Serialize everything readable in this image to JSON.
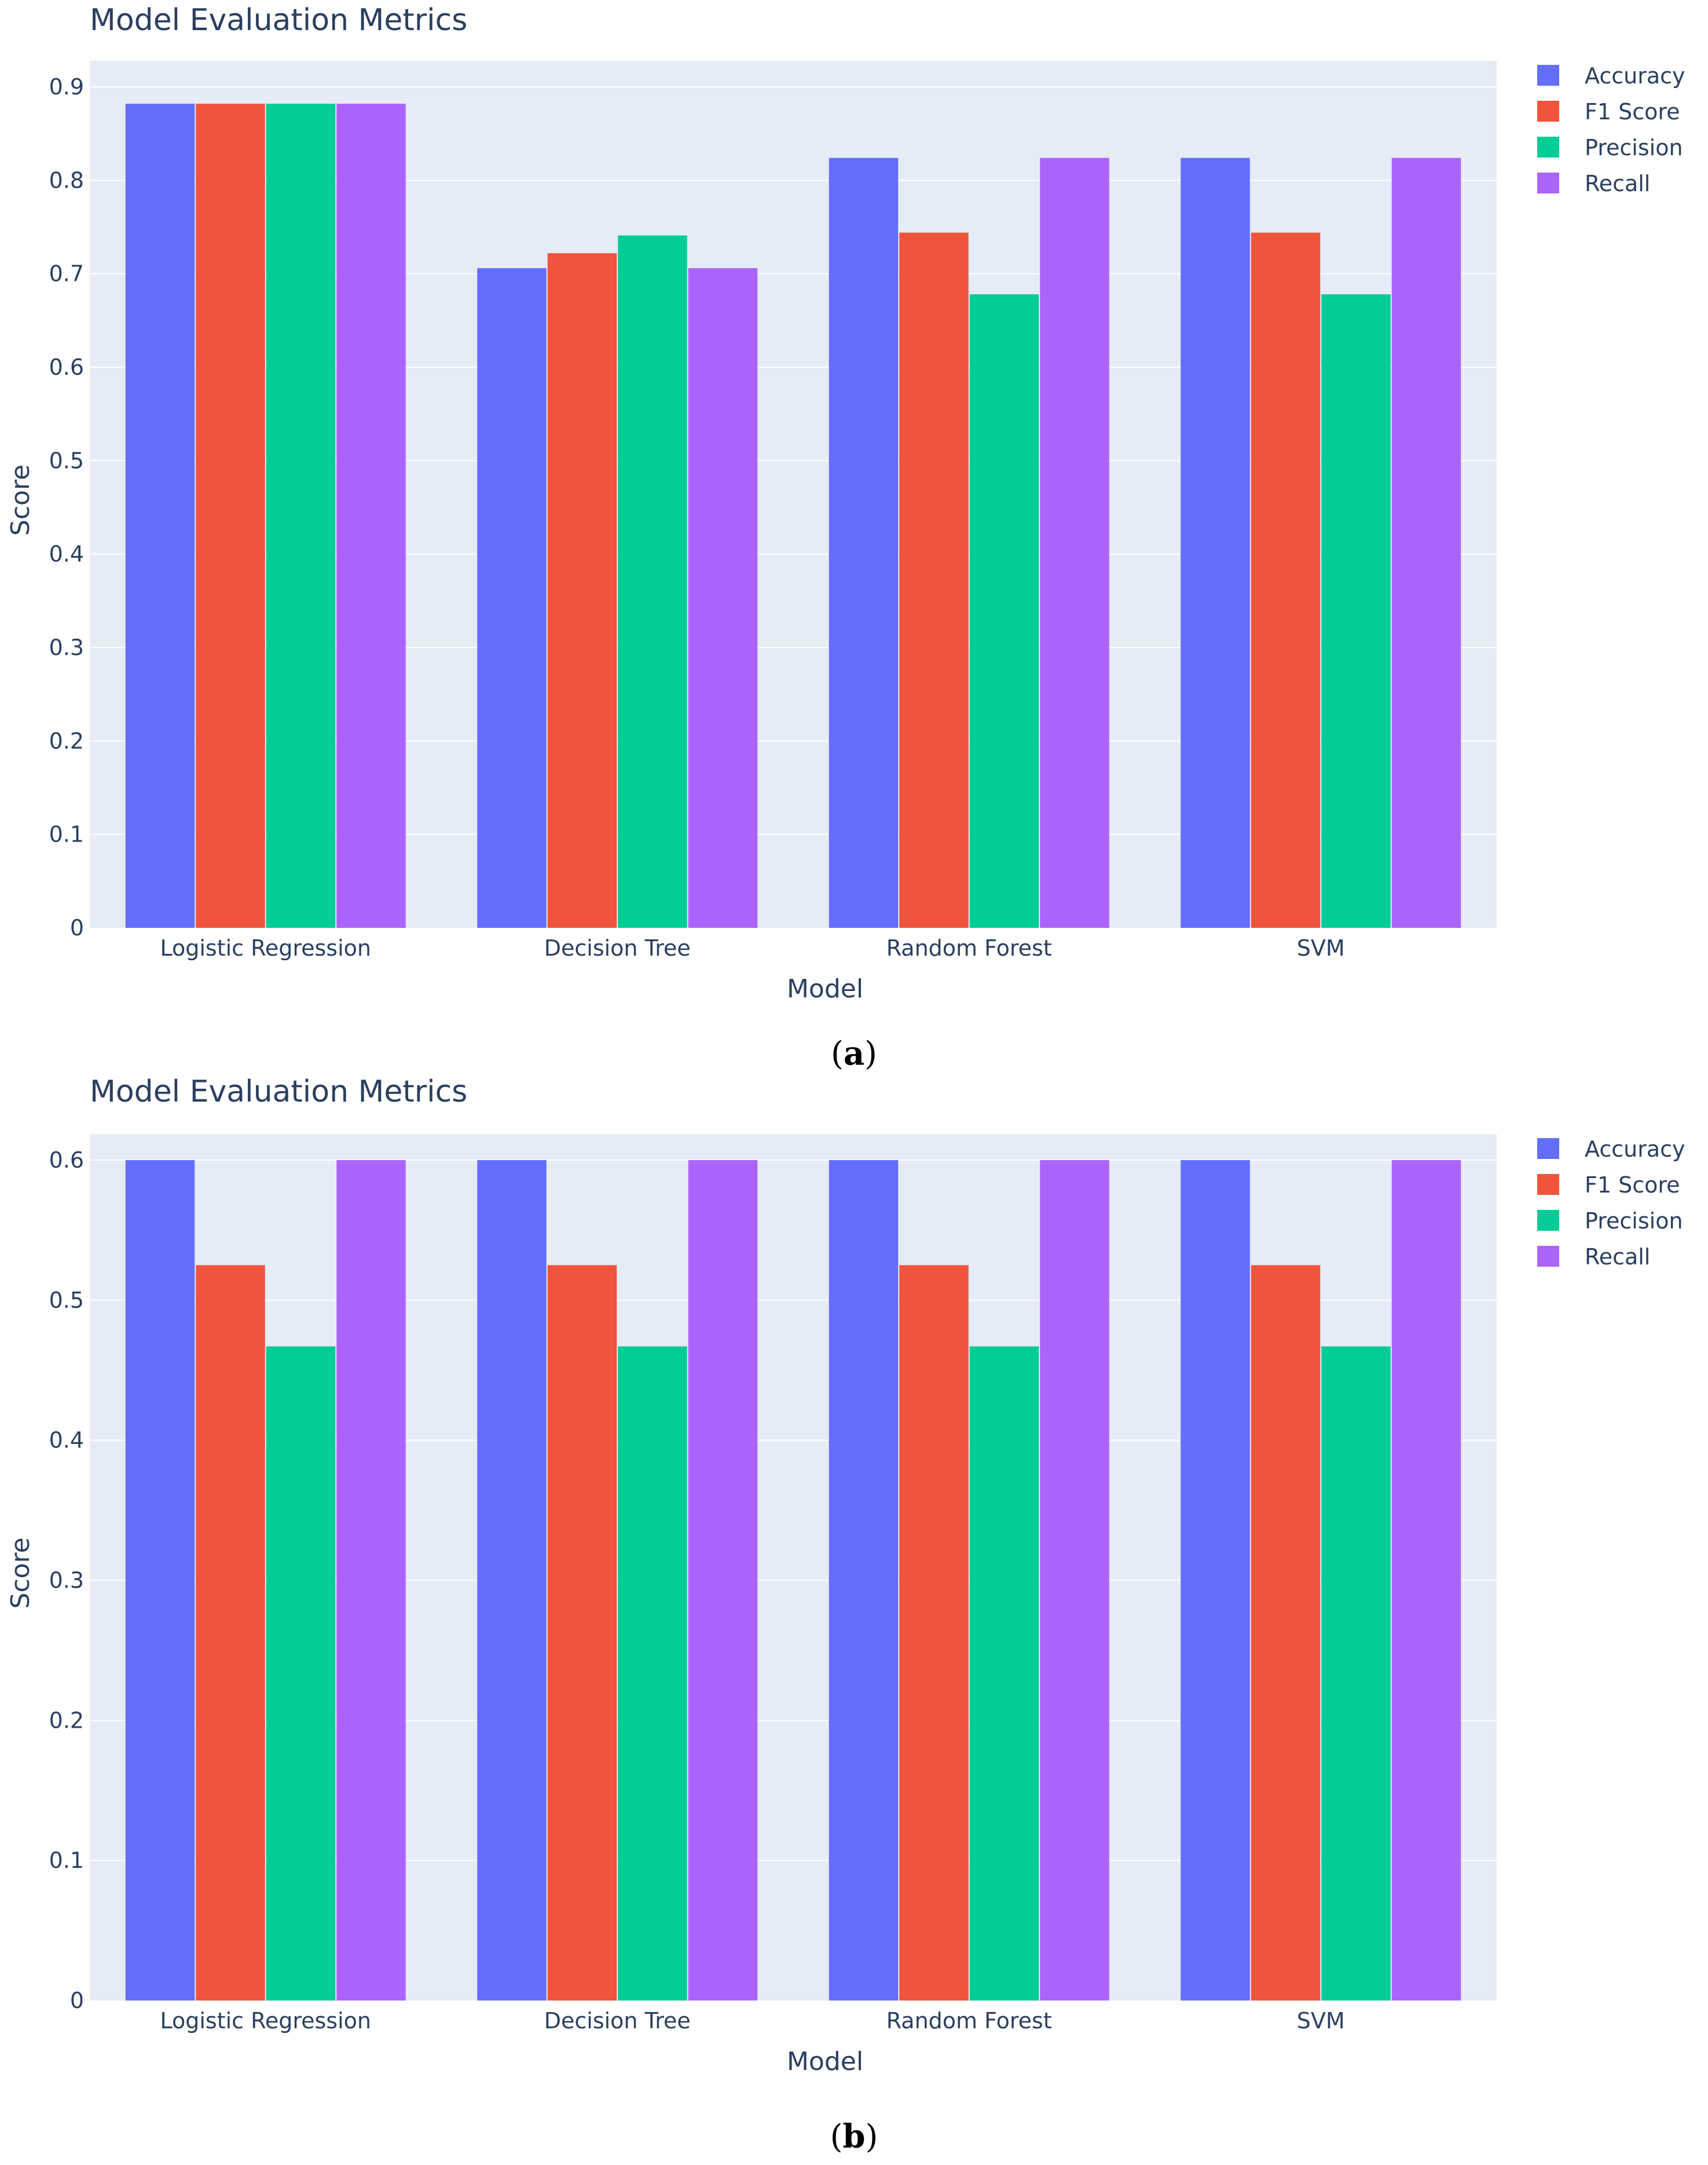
{
  "caption_a": {
    "open": "(",
    "letter": "a",
    "close": ")"
  },
  "caption_b": {
    "open": "(",
    "letter": "b",
    "close": ")"
  },
  "colors": {
    "plot_bg": "#e5ecf6",
    "grid": "#ffffff",
    "text": "#2a3f5f"
  },
  "chart_data": [
    {
      "type": "bar",
      "panel": "a",
      "title": "Model Evaluation Metrics",
      "xlabel": "Model",
      "ylabel": "Score",
      "categories": [
        "Logistic Regression",
        "Decision Tree",
        "Random Forest",
        "SVM"
      ],
      "ylim": [
        0,
        0.9
      ],
      "yticks": [
        0,
        0.1,
        0.2,
        0.3,
        0.4,
        0.5,
        0.6,
        0.7,
        0.8,
        0.9
      ],
      "ytick_labels": [
        "0",
        "0.1",
        "0.2",
        "0.3",
        "0.4",
        "0.5",
        "0.6",
        "0.7",
        "0.8",
        "0.9"
      ],
      "grid": true,
      "legend_position": "top-right",
      "series": [
        {
          "name": "Accuracy",
          "color": "#636efa",
          "values": [
            0.882,
            0.706,
            0.824,
            0.824
          ]
        },
        {
          "name": "F1 Score",
          "color": "#ef553b",
          "values": [
            0.882,
            0.722,
            0.744,
            0.744
          ]
        },
        {
          "name": "Precision",
          "color": "#00cc96",
          "values": [
            0.882,
            0.741,
            0.678,
            0.678
          ]
        },
        {
          "name": "Recall",
          "color": "#ab63fa",
          "values": [
            0.882,
            0.706,
            0.824,
            0.824
          ]
        }
      ]
    },
    {
      "type": "bar",
      "panel": "b",
      "title": "Model Evaluation Metrics",
      "xlabel": "Model",
      "ylabel": "Score",
      "categories": [
        "Logistic Regression",
        "Decision Tree",
        "Random Forest",
        "SVM"
      ],
      "ylim": [
        0,
        0.6
      ],
      "yticks": [
        0,
        0.1,
        0.2,
        0.3,
        0.4,
        0.5,
        0.6
      ],
      "ytick_labels": [
        "0",
        "0.1",
        "0.2",
        "0.3",
        "0.4",
        "0.5",
        "0.6"
      ],
      "grid": true,
      "legend_position": "top-right",
      "series": [
        {
          "name": "Accuracy",
          "color": "#636efa",
          "values": [
            0.6,
            0.6,
            0.6,
            0.6
          ]
        },
        {
          "name": "F1 Score",
          "color": "#ef553b",
          "values": [
            0.525,
            0.525,
            0.525,
            0.525
          ]
        },
        {
          "name": "Precision",
          "color": "#00cc96",
          "values": [
            0.467,
            0.467,
            0.467,
            0.467
          ]
        },
        {
          "name": "Recall",
          "color": "#ab63fa",
          "values": [
            0.6,
            0.6,
            0.6,
            0.6
          ]
        }
      ]
    }
  ]
}
